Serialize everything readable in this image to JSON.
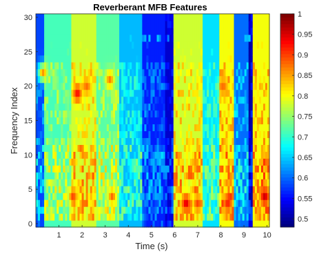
{
  "chart_data": {
    "type": "heatmap",
    "title": "Reverberant MFB Features",
    "xlabel": "Time (s)",
    "ylabel": "Frequency Index",
    "x_ticks": [
      "1",
      "2",
      "3",
      "4",
      "5",
      "6",
      "7",
      "8",
      "9",
      "10"
    ],
    "y_ticks": [
      "0",
      "5",
      "10",
      "15",
      "20",
      "25",
      "30"
    ],
    "xlim": [
      0,
      10.1
    ],
    "ylim": [
      -0.5,
      30.5
    ],
    "n_frequency_bins": 31,
    "colormap": "jet",
    "colorbar": {
      "ticks": [
        "1",
        "0.95",
        "0.9",
        "0.85",
        "0.8",
        "0.75",
        "0.7",
        "0.65",
        "0.6",
        "0.55",
        "0.5"
      ],
      "range": [
        0.48,
        1.0
      ]
    },
    "value_profile": {
      "time_bands": [
        {
          "t_start": 0.0,
          "t_end": 0.4,
          "level": 0.58
        },
        {
          "t_start": 0.4,
          "t_end": 1.5,
          "level": 0.71
        },
        {
          "t_start": 1.5,
          "t_end": 2.6,
          "level": 0.78
        },
        {
          "t_start": 2.6,
          "t_end": 3.6,
          "level": 0.72
        },
        {
          "t_start": 3.6,
          "t_end": 4.6,
          "level": 0.64
        },
        {
          "t_start": 4.6,
          "t_end": 5.6,
          "level": 0.56
        },
        {
          "t_start": 5.6,
          "t_end": 5.95,
          "level": 0.52
        },
        {
          "t_start": 5.95,
          "t_end": 7.2,
          "level": 0.78
        },
        {
          "t_start": 7.2,
          "t_end": 7.9,
          "level": 0.66
        },
        {
          "t_start": 7.9,
          "t_end": 8.6,
          "level": 0.8
        },
        {
          "t_start": 8.6,
          "t_end": 9.2,
          "level": 0.6
        },
        {
          "t_start": 9.2,
          "t_end": 9.4,
          "level": 0.5
        },
        {
          "t_start": 9.4,
          "t_end": 10.1,
          "level": 0.8
        }
      ],
      "top_band_low_from_index": 27,
      "bottom_band_low_index": 0,
      "hot_spots": [
        {
          "t": 1.8,
          "freq": 19,
          "value": 0.93
        },
        {
          "t": 2.2,
          "freq": 20,
          "value": 0.88
        },
        {
          "t": 3.2,
          "freq": 21,
          "value": 0.87
        },
        {
          "t": 1.6,
          "freq": 4,
          "value": 0.9
        },
        {
          "t": 3.3,
          "freq": 4,
          "value": 0.88
        },
        {
          "t": 6.5,
          "freq": 3,
          "value": 0.95
        },
        {
          "t": 7.0,
          "freq": 3,
          "value": 0.9
        },
        {
          "t": 8.3,
          "freq": 3,
          "value": 0.92
        },
        {
          "t": 9.9,
          "freq": 4,
          "value": 0.96
        },
        {
          "t": 10.0,
          "freq": 9,
          "value": 0.88
        },
        {
          "t": 8.1,
          "freq": 20,
          "value": 0.88
        },
        {
          "t": 0.3,
          "freq": 22,
          "value": 0.86
        },
        {
          "t": 6.9,
          "freq": 9,
          "value": 0.86
        }
      ]
    }
  }
}
